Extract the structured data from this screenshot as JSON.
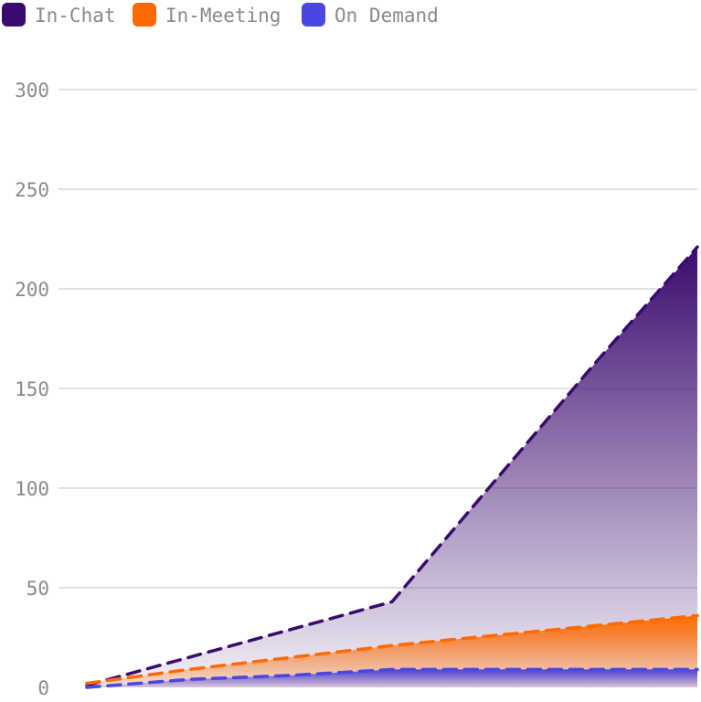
{
  "chart_data": {
    "type": "area",
    "title": "",
    "xlabel": "",
    "ylabel": "",
    "ylim": [
      0,
      300
    ],
    "yticks": [
      0,
      50,
      100,
      150,
      200,
      250,
      300
    ],
    "grid": true,
    "legend_position": "top-left",
    "x": [
      0,
      1,
      2,
      3,
      4,
      5,
      6
    ],
    "series": [
      {
        "name": "In-Chat",
        "color": "#3a0b6e",
        "values": [
          1,
          15,
          29,
          43,
          103,
          163,
          221
        ]
      },
      {
        "name": "In-Meeting",
        "color": "#ff6a00",
        "values": [
          2,
          9,
          15,
          21,
          26,
          31,
          36
        ]
      },
      {
        "name": "On Demand",
        "color": "#4a46e0",
        "values": [
          0,
          4,
          6,
          9,
          9,
          9,
          9
        ]
      }
    ]
  }
}
